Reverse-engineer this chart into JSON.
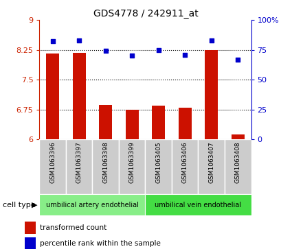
{
  "title": "GDS4778 / 242911_at",
  "samples": [
    "GSM1063396",
    "GSM1063397",
    "GSM1063398",
    "GSM1063399",
    "GSM1063405",
    "GSM1063406",
    "GSM1063407",
    "GSM1063408"
  ],
  "bar_values": [
    8.15,
    8.18,
    6.87,
    6.74,
    6.84,
    6.79,
    8.25,
    6.12
  ],
  "dot_values": [
    82,
    83,
    74,
    70,
    75,
    71,
    83,
    67
  ],
  "ylim_left": [
    6,
    9
  ],
  "ylim_right": [
    0,
    100
  ],
  "yticks_left": [
    6,
    6.75,
    7.5,
    8.25,
    9
  ],
  "yticks_right": [
    0,
    25,
    50,
    75,
    100
  ],
  "bar_color": "#cc1100",
  "dot_color": "#0000cc",
  "bar_bottom": 6,
  "groups": [
    {
      "label": "umbilical artery endothelial",
      "n_samples": 4,
      "color": "#88ee88"
    },
    {
      "label": "umbilical vein endothelial",
      "n_samples": 4,
      "color": "#44dd44"
    }
  ],
  "cell_type_label": "cell type",
  "legend_bar_label": "transformed count",
  "legend_dot_label": "percentile rank within the sample",
  "tick_label_color_left": "#cc2200",
  "tick_label_color_right": "#0000cc",
  "sample_box_color": "#cccccc",
  "sample_box_edge_color": "#999999"
}
